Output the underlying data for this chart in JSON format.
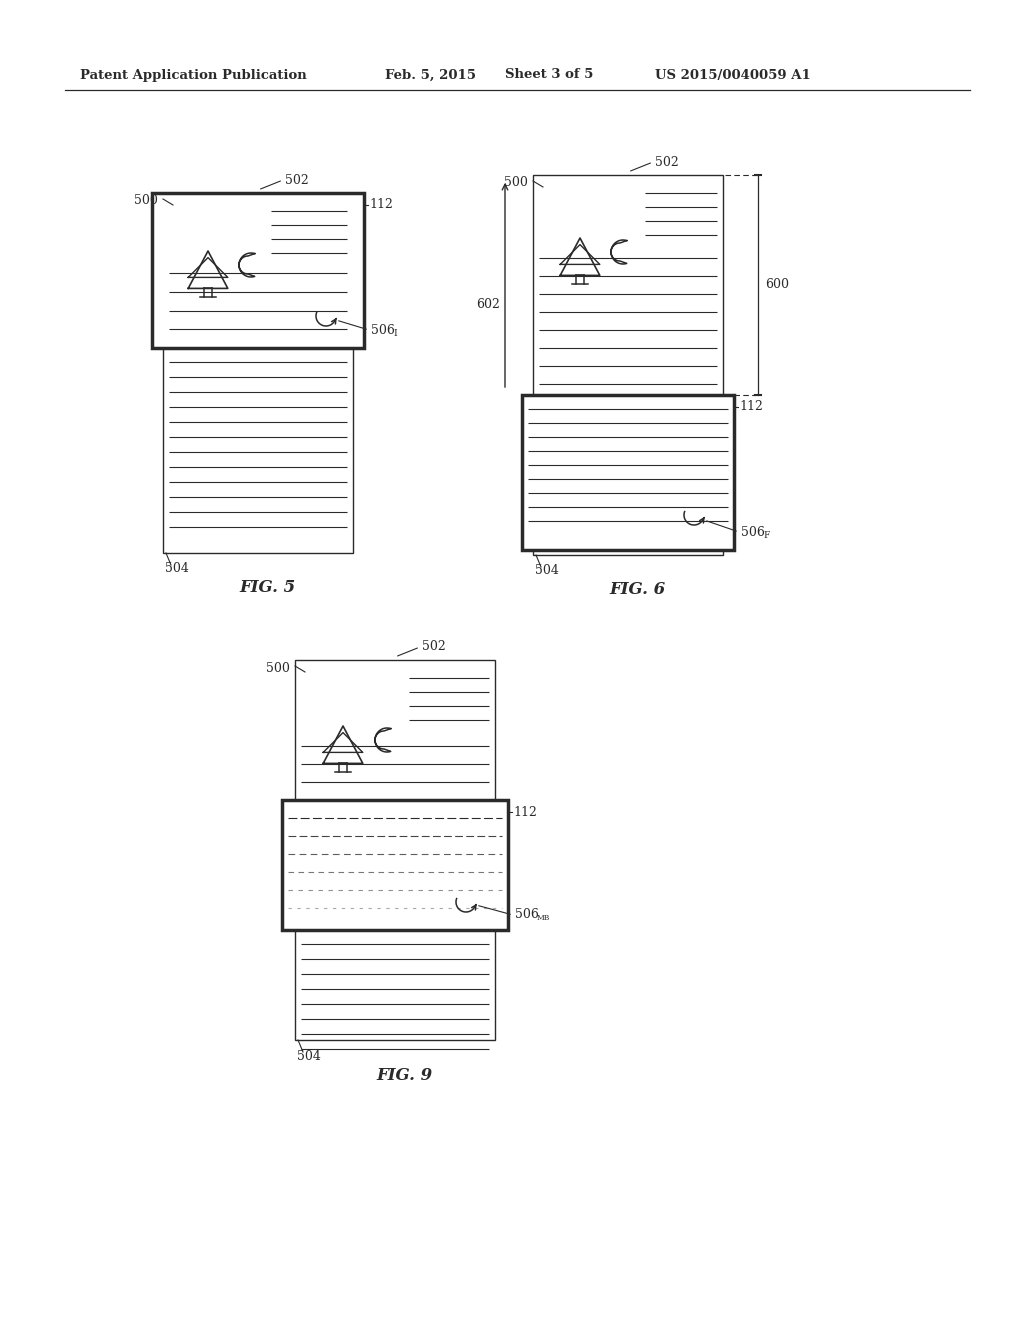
{
  "bg_color": "#ffffff",
  "line_color": "#2a2a2a",
  "header_left": "Patent Application Publication",
  "header_mid1": "Feb. 5, 2015",
  "header_mid2": "Sheet 3 of 5",
  "header_right": "US 2015/0040059 A1",
  "fig5_label": "FIG. 5",
  "fig6_label": "FIG. 6",
  "fig9_label": "FIG. 9",
  "thick_lw": 2.5,
  "thin_lw": 1.0
}
